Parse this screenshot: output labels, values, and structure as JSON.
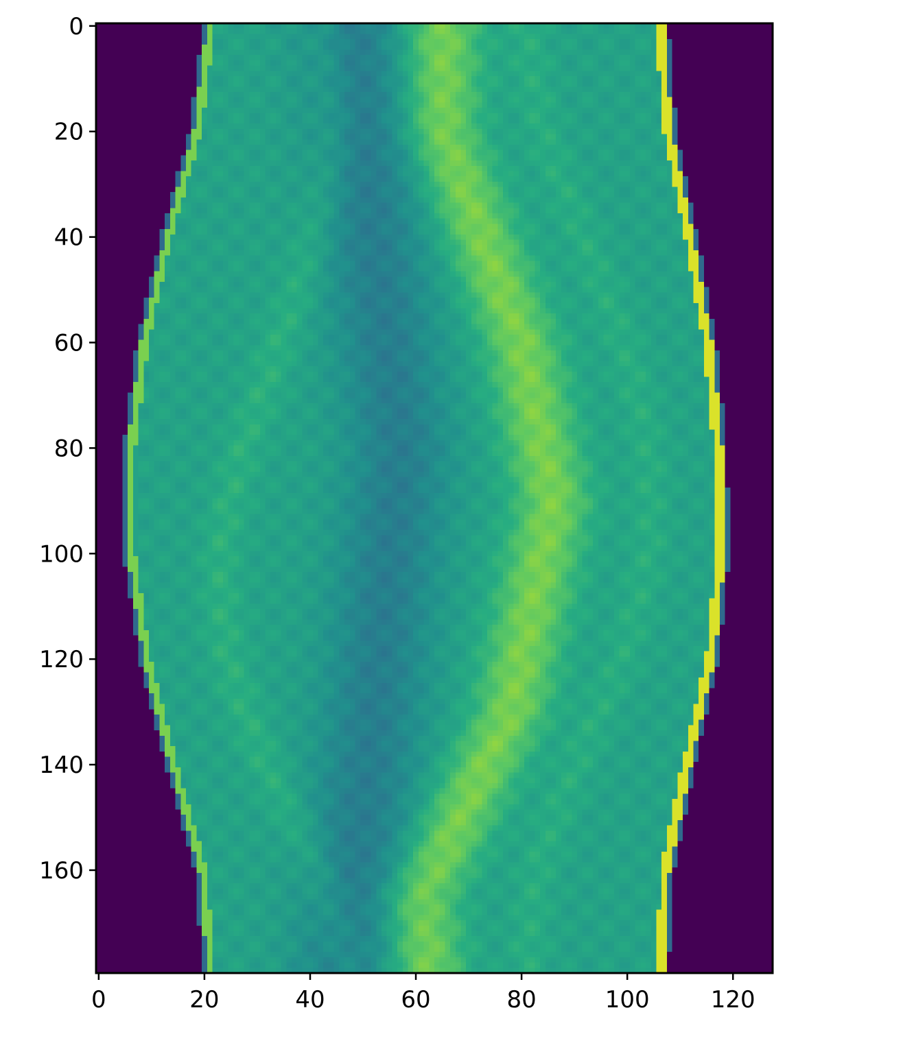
{
  "chart_data": {
    "type": "heatmap",
    "title": "",
    "xlabel": "",
    "ylabel": "",
    "colormap": "viridis",
    "image_columns": 128,
    "image_rows": 180,
    "xlim": [
      -0.5,
      127.5
    ],
    "ylim": [
      179.5,
      -0.5
    ],
    "x_ticks": [
      0,
      20,
      40,
      60,
      80,
      100,
      120
    ],
    "x_tick_labels": [
      "0",
      "20",
      "40",
      "60",
      "80",
      "100",
      "120"
    ],
    "y_ticks": [
      0,
      20,
      40,
      60,
      80,
      100,
      120,
      140,
      160
    ],
    "y_tick_labels": [
      "0",
      "20",
      "40",
      "60",
      "80",
      "100",
      "120",
      "140",
      "160"
    ],
    "background_value_color": "#440154",
    "edge_color": "#fde725",
    "support_profile": [
      {
        "row": 0,
        "left": 20.5,
        "right": 107.0
      },
      {
        "row": 20,
        "left": 18.0,
        "right": 108.5
      },
      {
        "row": 40,
        "left": 12.5,
        "right": 112.5
      },
      {
        "row": 60,
        "left": 8.0,
        "right": 116.0
      },
      {
        "row": 80,
        "left": 5.5,
        "right": 118.0
      },
      {
        "row": 100,
        "left": 5.5,
        "right": 118.5
      },
      {
        "row": 120,
        "left": 8.5,
        "right": 116.5
      },
      {
        "row": 140,
        "left": 13.5,
        "right": 112.0
      },
      {
        "row": 160,
        "left": 19.0,
        "right": 108.0
      },
      {
        "row": 179,
        "left": 20.5,
        "right": 107.0
      }
    ],
    "dark_band_center_profile": [
      {
        "row": 0,
        "col": 48
      },
      {
        "row": 40,
        "col": 52
      },
      {
        "row": 80,
        "col": 57
      },
      {
        "row": 110,
        "col": 54
      },
      {
        "row": 150,
        "col": 50
      },
      {
        "row": 179,
        "col": 47
      }
    ],
    "bright_band_center_profile": [
      {
        "row": 0,
        "col": 65
      },
      {
        "row": 20,
        "col": 65
      },
      {
        "row": 60,
        "col": 80
      },
      {
        "row": 90,
        "col": 86
      },
      {
        "row": 130,
        "col": 78
      },
      {
        "row": 165,
        "col": 61
      },
      {
        "row": 179,
        "col": 62
      }
    ]
  }
}
